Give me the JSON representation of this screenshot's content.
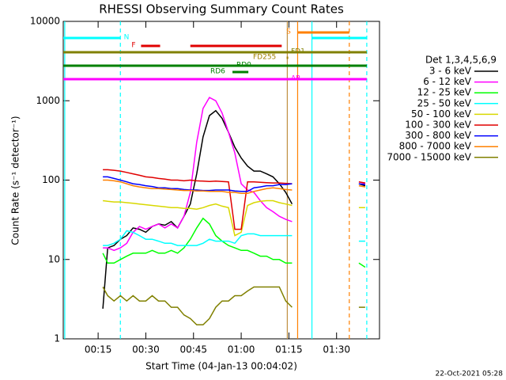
{
  "chart_data": {
    "type": "line",
    "title": "RHESSI Observing Summary Count Rates",
    "xlabel": "Start Time (04-Jan-13 00:04:02)",
    "ylabel": "Count Rate (s⁻¹ detector⁻¹)",
    "footer": "22-Oct-2021 05:28",
    "legend_title": "Det 1,3,4,5,6,9",
    "ylog": true,
    "xlim": [
      4.03,
      103.5
    ],
    "ylim": [
      1,
      10000
    ],
    "xticks": [
      {
        "value": 15,
        "label": "00:15"
      },
      {
        "value": 30,
        "label": "00:30"
      },
      {
        "value": 45,
        "label": "00:45"
      },
      {
        "value": 60,
        "label": "01:00"
      },
      {
        "value": 75,
        "label": "01:15"
      },
      {
        "value": 90,
        "label": "01:30"
      }
    ],
    "yticks": [
      1,
      10,
      100,
      1000,
      10000
    ],
    "x": [
      16.5,
      18,
      20,
      22,
      24,
      26,
      28,
      30,
      32,
      34,
      36,
      38,
      40,
      42,
      44,
      46,
      48,
      50,
      52,
      54,
      56,
      58,
      60,
      62,
      64,
      66,
      68,
      70,
      72,
      74,
      76,
      86,
      97,
      99
    ],
    "series": [
      {
        "name": "3 - 6 keV",
        "color": "#000000",
        "values": [
          2.4,
          14,
          15,
          18,
          20,
          25,
          24,
          22,
          26,
          28,
          27,
          30,
          25,
          35,
          50,
          120,
          350,
          650,
          750,
          600,
          400,
          260,
          190,
          150,
          130,
          130,
          120,
          110,
          90,
          70,
          50,
          null,
          90,
          85
        ]
      },
      {
        "name": "6 - 12 keV",
        "color": "#ff00ff",
        "values": [
          14,
          14,
          13,
          14,
          16,
          22,
          26,
          24,
          26,
          28,
          25,
          28,
          25,
          35,
          70,
          300,
          800,
          1100,
          1000,
          700,
          400,
          220,
          90,
          75,
          70,
          55,
          45,
          40,
          35,
          32,
          30,
          null,
          95,
          90
        ]
      },
      {
        "name": "12 - 25 keV",
        "color": "#00ff00",
        "values": [
          12,
          9,
          9,
          10,
          11,
          12,
          12,
          12,
          13,
          12,
          12,
          13,
          12,
          14,
          18,
          25,
          33,
          28,
          20,
          17,
          15,
          14,
          13,
          13,
          12,
          11,
          11,
          10,
          10,
          9,
          9,
          null,
          9,
          8
        ]
      },
      {
        "name": "25 - 50 keV",
        "color": "#00ffff",
        "values": [
          15,
          15,
          16,
          18,
          23,
          22,
          20,
          18,
          18,
          17,
          16,
          16,
          15,
          15,
          15,
          15,
          16,
          18,
          17,
          17,
          17,
          16,
          20,
          21,
          21,
          20,
          20,
          20,
          20,
          20,
          20,
          null,
          17,
          17
        ]
      },
      {
        "name": "50 - 100 keV",
        "color": "#d8d800",
        "values": [
          55,
          54,
          53,
          53,
          52,
          51,
          50,
          49,
          48,
          47,
          46,
          45,
          45,
          44,
          44,
          43,
          45,
          48,
          50,
          47,
          45,
          20,
          22,
          48,
          52,
          54,
          55,
          55,
          52,
          50,
          48,
          null,
          45,
          45
        ]
      },
      {
        "name": "100 - 300 keV",
        "color": "#e00000",
        "values": [
          135,
          135,
          133,
          130,
          125,
          120,
          115,
          110,
          108,
          105,
          103,
          100,
          100,
          98,
          100,
          98,
          97,
          96,
          97,
          96,
          95,
          24,
          24,
          95,
          95,
          94,
          93,
          92,
          92,
          91,
          90,
          null,
          95,
          92
        ]
      },
      {
        "name": "300 - 800 keV",
        "color": "#0000ff",
        "values": [
          110,
          110,
          105,
          100,
          95,
          90,
          88,
          85,
          83,
          80,
          80,
          78,
          78,
          76,
          75,
          75,
          74,
          74,
          75,
          75,
          75,
          73,
          72,
          72,
          80,
          82,
          85,
          85,
          88,
          88,
          90,
          null,
          90,
          88
        ]
      },
      {
        "name": "800 - 7000 keV",
        "color": "#ff8000",
        "values": [
          100,
          100,
          98,
          95,
          90,
          85,
          82,
          80,
          78,
          78,
          77,
          76,
          75,
          74,
          74,
          73,
          73,
          72,
          72,
          72,
          70,
          70,
          68,
          68,
          72,
          75,
          78,
          80,
          78,
          76,
          75,
          null,
          85,
          82
        ]
      },
      {
        "name": "7000 - 15000 keV",
        "color": "#808000",
        "values": [
          4.5,
          3.5,
          3,
          3.5,
          3,
          3.5,
          3,
          3,
          3.5,
          3,
          3,
          2.5,
          2.5,
          2,
          1.8,
          1.5,
          1.5,
          1.8,
          2.5,
          3,
          3,
          3.5,
          3.5,
          4,
          4.5,
          4.5,
          4.5,
          4.5,
          4.5,
          3,
          2.5,
          null,
          2.5,
          2.5
        ]
      }
    ],
    "flags": [
      {
        "label": "N",
        "color": "#00ffff",
        "intervals": [
          [
            4.03,
            22
          ],
          [
            82.25,
            99.5
          ]
        ]
      },
      {
        "label": "F",
        "color": "#e00000",
        "intervals": [
          [
            28.5,
            34.5
          ],
          [
            44,
            72.75
          ]
        ]
      },
      {
        "label": "S",
        "color": "#ff8000",
        "intervals": [
          [
            77.75,
            94
          ]
        ]
      },
      {
        "label": "FD1",
        "color": "#808000",
        "intervals": [
          [
            4.03,
            99.5
          ]
        ]
      },
      {
        "label": "FD255",
        "color": "#a08000",
        "intervals": [
          [
            74.3,
            74.7
          ]
        ]
      },
      {
        "label": "RD0",
        "color": "#008000",
        "intervals": [
          [
            4.03,
            99.5
          ]
        ]
      },
      {
        "label": "RD6",
        "color": "#008000",
        "intervals": [
          [
            57.25,
            62.25
          ]
        ]
      },
      {
        "label": "AP",
        "color": "#ff00ff",
        "intervals": [
          [
            4.03,
            99.5
          ]
        ]
      }
    ],
    "vlines": [
      {
        "x": 4.5,
        "color": "#00ffff",
        "dashed": false
      },
      {
        "x": 22,
        "color": "#00ffff",
        "dashed": true
      },
      {
        "x": 74.5,
        "color": "#c09040",
        "dashed": false
      },
      {
        "x": 77.75,
        "color": "#ff8000",
        "dashed": false
      },
      {
        "x": 82.25,
        "color": "#00ffff",
        "dashed": false
      },
      {
        "x": 94,
        "color": "#ff8000",
        "dashed": true
      },
      {
        "x": 99.5,
        "color": "#00ffff",
        "dashed": true
      }
    ]
  }
}
